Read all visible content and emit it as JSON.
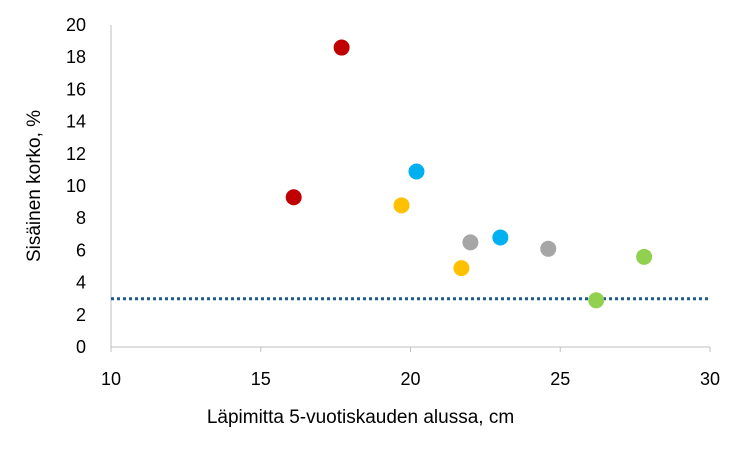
{
  "chart_data": {
    "type": "scatter",
    "title": "",
    "xlabel": "Läpimitta 5-vuotiskauden alussa, cm",
    "ylabel": "Sisäinen korko, %",
    "xlim": [
      10,
      30
    ],
    "ylim": [
      0,
      20
    ],
    "x_ticks": [
      10,
      15,
      20,
      25,
      30
    ],
    "y_ticks": [
      0,
      2,
      4,
      6,
      8,
      10,
      12,
      14,
      16,
      18,
      20
    ],
    "grid": false,
    "legend": "none",
    "reference_line": {
      "y": 3,
      "style": "dotted",
      "color": "#1f5c8b"
    },
    "points": [
      {
        "x": 16.1,
        "y": 9.3,
        "color": "#c00000"
      },
      {
        "x": 17.7,
        "y": 18.6,
        "color": "#c00000"
      },
      {
        "x": 20.2,
        "y": 10.9,
        "color": "#00b0f0"
      },
      {
        "x": 23.0,
        "y": 6.8,
        "color": "#00b0f0"
      },
      {
        "x": 19.7,
        "y": 8.8,
        "color": "#ffc000"
      },
      {
        "x": 21.7,
        "y": 4.9,
        "color": "#ffc000"
      },
      {
        "x": 22.0,
        "y": 6.5,
        "color": "#a6a6a6"
      },
      {
        "x": 24.6,
        "y": 6.1,
        "color": "#a6a6a6"
      },
      {
        "x": 26.2,
        "y": 2.9,
        "color": "#92d050"
      },
      {
        "x": 27.8,
        "y": 5.6,
        "color": "#92d050"
      }
    ]
  }
}
